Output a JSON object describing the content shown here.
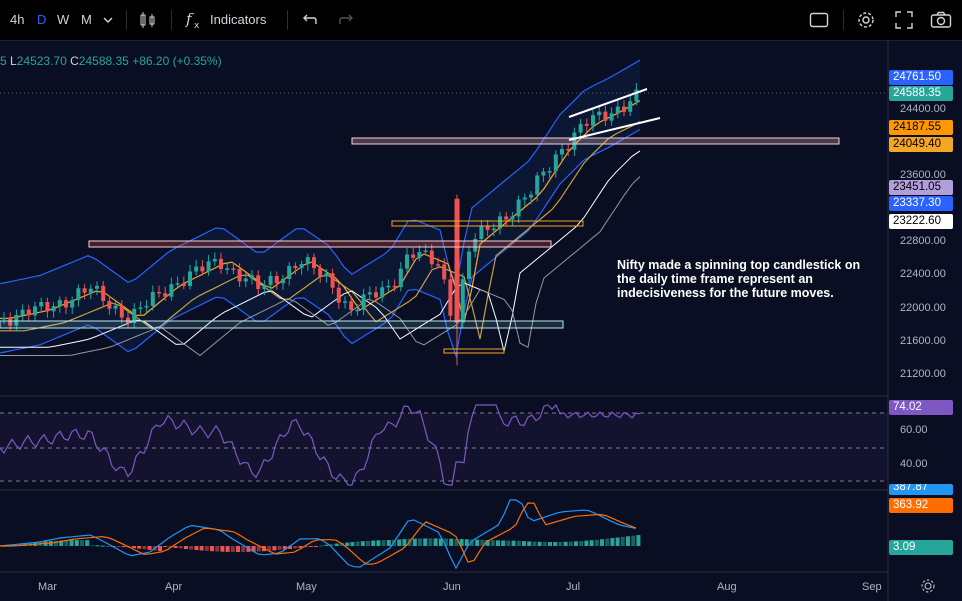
{
  "toolbar": {
    "intervals": [
      "4h",
      "D",
      "W",
      "M"
    ],
    "active_interval": "D",
    "indicators_label": "Indicators",
    "icons": [
      "chevron-down-icon",
      "candles-icon",
      "fx-icon",
      "undo-icon",
      "redo-icon",
      "layout-icon",
      "gear-icon",
      "fullscreen-icon",
      "camera-icon"
    ]
  },
  "ohlc": {
    "partial_prefix": "5",
    "l_label": "L",
    "l_value": "24523.70",
    "c_label": "C",
    "c_value": "24588.35",
    "change": "+86.20 (+0.35%)"
  },
  "price_axis": {
    "ticks": [
      "24400.00",
      "23600.00",
      "22800.00",
      "22400.00",
      "22000.00",
      "21600.00",
      "21200.00"
    ],
    "labels": [
      {
        "text": "24761.50",
        "color": "#2962ff"
      },
      {
        "text": "24588.35",
        "color": "#26a69a"
      },
      {
        "text": "24187.55",
        "color": "#ff9800"
      },
      {
        "text": "24049.40",
        "color": "#f5a623"
      },
      {
        "text": "23451.05",
        "color": "#b39ddb"
      },
      {
        "text": "23337.30",
        "color": "#2962ff"
      },
      {
        "text": "23222.60",
        "color": "#ffffff"
      }
    ]
  },
  "rsi_axis": {
    "ticks": [
      "60.00",
      "40.00"
    ],
    "value_label": "74.02",
    "value_color": "#7e57c2"
  },
  "macd_axis": {
    "labels": [
      {
        "text": "387.87",
        "color": "#2196f3"
      },
      {
        "text": "363.92",
        "color": "#ff6d00"
      },
      {
        "text": "3.09",
        "color": "#26a69a"
      }
    ]
  },
  "time_axis": {
    "labels": [
      "Mar",
      "Apr",
      "May",
      "Jun",
      "Jul",
      "Aug",
      "Sep"
    ]
  },
  "annotation": {
    "text": "Nifty made a spinning top candlestick on the daily time frame represent an indecisiveness for the future moves."
  }
}
